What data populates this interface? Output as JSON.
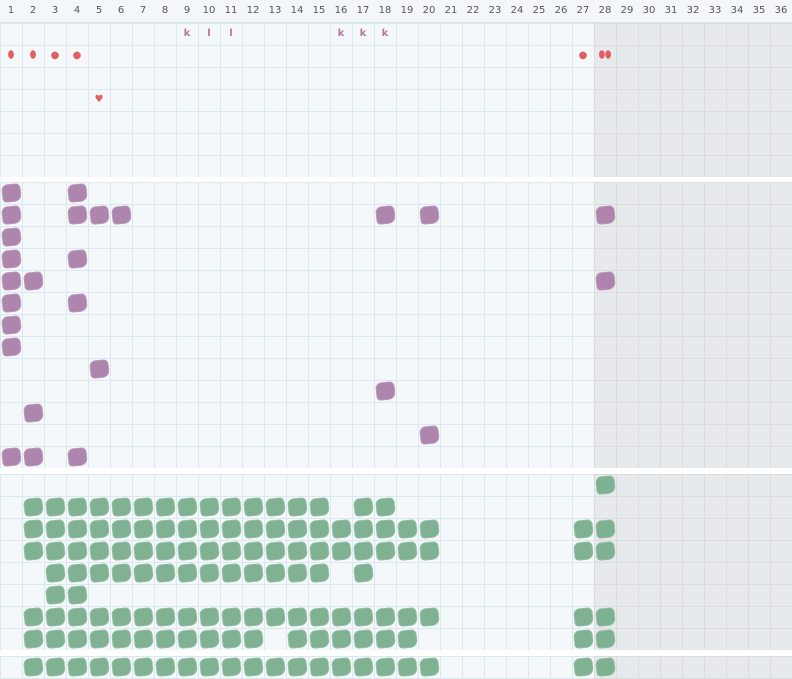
{
  "colors": {
    "purple": "#ab7fa9",
    "green": "#79ae8d",
    "marker_red": "#e06060",
    "letter_purple": "#b07aa1"
  },
  "columns": [
    "1",
    "2",
    "3",
    "4",
    "5",
    "6",
    "7",
    "8",
    "9",
    "10",
    "11",
    "12",
    "13",
    "14",
    "15",
    "16",
    "17",
    "18",
    "19",
    "20",
    "21",
    "22",
    "23",
    "24",
    "25",
    "26",
    "27",
    "28",
    "29",
    "30",
    "31",
    "32",
    "33",
    "34",
    "35",
    "36"
  ],
  "legend_marks": [
    {
      "col": 9,
      "row": 0,
      "text": "k",
      "kind": "letter"
    },
    {
      "col": 10,
      "row": 0,
      "text": "l",
      "kind": "letter"
    },
    {
      "col": 11,
      "row": 0,
      "text": "l",
      "kind": "letter"
    },
    {
      "col": 16,
      "row": 0,
      "text": "k",
      "kind": "letter"
    },
    {
      "col": 17,
      "row": 0,
      "text": "k",
      "kind": "letter"
    },
    {
      "col": 18,
      "row": 0,
      "text": "k",
      "kind": "letter"
    },
    {
      "col": 1,
      "row": 1,
      "text": "⬮",
      "kind": "sym"
    },
    {
      "col": 2,
      "row": 1,
      "text": "⬮",
      "kind": "sym"
    },
    {
      "col": 3,
      "row": 1,
      "text": "●",
      "kind": "sym"
    },
    {
      "col": 4,
      "row": 1,
      "text": "●",
      "kind": "sym"
    },
    {
      "col": 27,
      "row": 1,
      "text": "●",
      "kind": "sym"
    },
    {
      "col": 28,
      "row": 1,
      "text": "⬮⬮",
      "kind": "sym"
    },
    {
      "col": 5,
      "row": 3,
      "text": "♥",
      "kind": "sym"
    }
  ],
  "purple_cells": [
    [
      1,
      0
    ],
    [
      4,
      0
    ],
    [
      1,
      1
    ],
    [
      4,
      1
    ],
    [
      5,
      1
    ],
    [
      6,
      1
    ],
    [
      18,
      1
    ],
    [
      20,
      1
    ],
    [
      28,
      1
    ],
    [
      1,
      2
    ],
    [
      1,
      3
    ],
    [
      4,
      3
    ],
    [
      1,
      4
    ],
    [
      2,
      4
    ],
    [
      28,
      4
    ],
    [
      1,
      5
    ],
    [
      4,
      5
    ],
    [
      1,
      6
    ],
    [
      1,
      7
    ],
    [
      5,
      8
    ],
    [
      18,
      9
    ],
    [
      2,
      10
    ],
    [
      20,
      11
    ],
    [
      1,
      12
    ],
    [
      2,
      12
    ],
    [
      4,
      12
    ]
  ],
  "green_cells": [
    [
      28,
      0
    ],
    [
      2,
      1
    ],
    [
      3,
      1
    ],
    [
      4,
      1
    ],
    [
      5,
      1
    ],
    [
      6,
      1
    ],
    [
      7,
      1
    ],
    [
      8,
      1
    ],
    [
      9,
      1
    ],
    [
      10,
      1
    ],
    [
      11,
      1
    ],
    [
      12,
      1
    ],
    [
      13,
      1
    ],
    [
      14,
      1
    ],
    [
      15,
      1
    ],
    [
      17,
      1
    ],
    [
      18,
      1
    ],
    [
      2,
      2
    ],
    [
      3,
      2
    ],
    [
      4,
      2
    ],
    [
      5,
      2
    ],
    [
      6,
      2
    ],
    [
      7,
      2
    ],
    [
      8,
      2
    ],
    [
      9,
      2
    ],
    [
      10,
      2
    ],
    [
      11,
      2
    ],
    [
      12,
      2
    ],
    [
      13,
      2
    ],
    [
      14,
      2
    ],
    [
      15,
      2
    ],
    [
      16,
      2
    ],
    [
      17,
      2
    ],
    [
      18,
      2
    ],
    [
      19,
      2
    ],
    [
      20,
      2
    ],
    [
      27,
      2
    ],
    [
      28,
      2
    ],
    [
      2,
      3
    ],
    [
      3,
      3
    ],
    [
      4,
      3
    ],
    [
      5,
      3
    ],
    [
      6,
      3
    ],
    [
      7,
      3
    ],
    [
      8,
      3
    ],
    [
      9,
      3
    ],
    [
      10,
      3
    ],
    [
      11,
      3
    ],
    [
      12,
      3
    ],
    [
      13,
      3
    ],
    [
      14,
      3
    ],
    [
      15,
      3
    ],
    [
      16,
      3
    ],
    [
      17,
      3
    ],
    [
      18,
      3
    ],
    [
      19,
      3
    ],
    [
      20,
      3
    ],
    [
      27,
      3
    ],
    [
      28,
      3
    ],
    [
      3,
      4
    ],
    [
      4,
      4
    ],
    [
      5,
      4
    ],
    [
      6,
      4
    ],
    [
      7,
      4
    ],
    [
      8,
      4
    ],
    [
      9,
      4
    ],
    [
      10,
      4
    ],
    [
      11,
      4
    ],
    [
      12,
      4
    ],
    [
      13,
      4
    ],
    [
      14,
      4
    ],
    [
      15,
      4
    ],
    [
      17,
      4
    ],
    [
      3,
      5
    ],
    [
      4,
      5
    ],
    [
      2,
      6
    ],
    [
      3,
      6
    ],
    [
      4,
      6
    ],
    [
      5,
      6
    ],
    [
      6,
      6
    ],
    [
      7,
      6
    ],
    [
      8,
      6
    ],
    [
      9,
      6
    ],
    [
      10,
      6
    ],
    [
      11,
      6
    ],
    [
      12,
      6
    ],
    [
      13,
      6
    ],
    [
      14,
      6
    ],
    [
      15,
      6
    ],
    [
      16,
      6
    ],
    [
      17,
      6
    ],
    [
      18,
      6
    ],
    [
      19,
      6
    ],
    [
      20,
      6
    ],
    [
      27,
      6
    ],
    [
      28,
      6
    ],
    [
      2,
      7
    ],
    [
      3,
      7
    ],
    [
      4,
      7
    ],
    [
      5,
      7
    ],
    [
      6,
      7
    ],
    [
      7,
      7
    ],
    [
      8,
      7
    ],
    [
      9,
      7
    ],
    [
      10,
      7
    ],
    [
      11,
      7
    ],
    [
      12,
      7
    ],
    [
      14,
      7
    ],
    [
      15,
      7
    ],
    [
      16,
      7
    ],
    [
      17,
      7
    ],
    [
      18,
      7
    ],
    [
      19,
      7
    ],
    [
      27,
      7
    ],
    [
      28,
      7
    ]
  ],
  "green_bottom_cells": [
    [
      2,
      0
    ],
    [
      3,
      0
    ],
    [
      4,
      0
    ],
    [
      5,
      0
    ],
    [
      6,
      0
    ],
    [
      7,
      0
    ],
    [
      8,
      0
    ],
    [
      9,
      0
    ],
    [
      10,
      0
    ],
    [
      11,
      0
    ],
    [
      12,
      0
    ],
    [
      13,
      0
    ],
    [
      14,
      0
    ],
    [
      15,
      0
    ],
    [
      16,
      0
    ],
    [
      17,
      0
    ],
    [
      18,
      0
    ],
    [
      19,
      0
    ],
    [
      20,
      0
    ],
    [
      27,
      0
    ],
    [
      28,
      0
    ]
  ]
}
